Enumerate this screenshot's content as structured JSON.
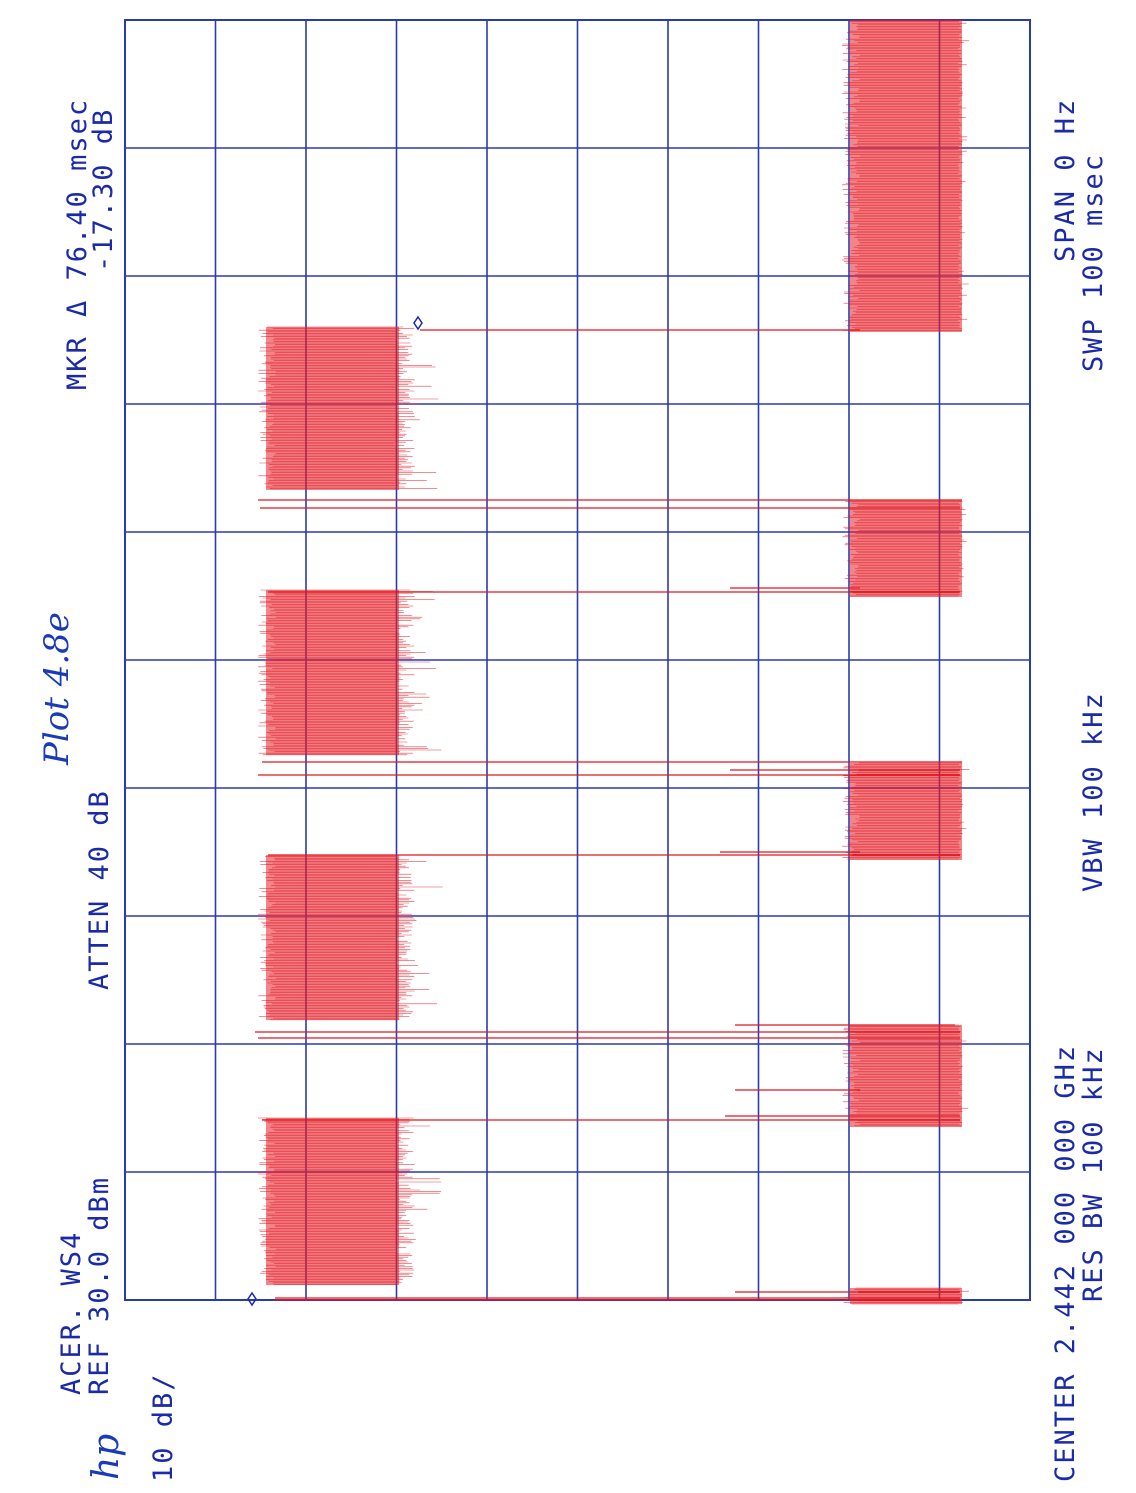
{
  "header": {
    "title": "ACER. WS4",
    "ref": "REF 30.0 dBm",
    "atten": "ATTEN 40 dB",
    "scale": "10 dB/",
    "logo": "hp"
  },
  "marker": {
    "delta": "MKR Δ 76.40 msec",
    "level": "-17.30 dB"
  },
  "annotation": "Plot 4.8e",
  "footer": {
    "center": "CENTER 2.442 000 000 GHz",
    "res_bw": "RES BW 100 kHz",
    "vbw": "VBW 100 kHz",
    "span": "SPAN 0 Hz",
    "sweep": "SWP 100 msec"
  }
}
